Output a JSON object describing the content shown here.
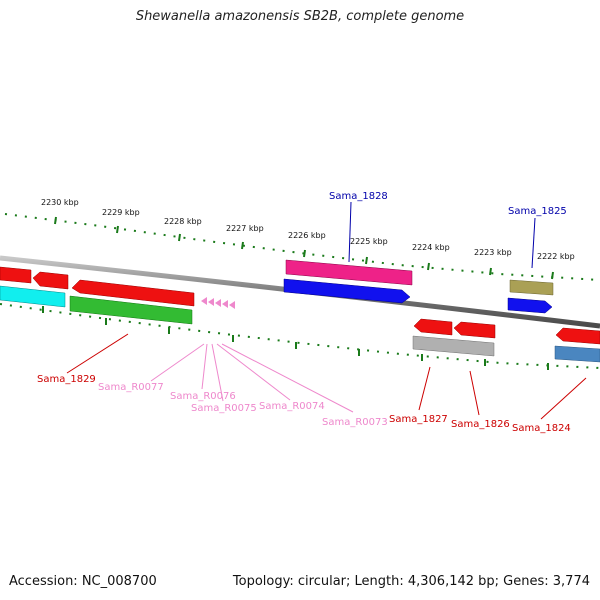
{
  "title": "Shewanella amazonensis SB2B, complete genome",
  "footer": {
    "accession": "Accession: NC_008700",
    "summary": "Topology: circular; Length: 4,306,142 bp; Genes: 3,774"
  },
  "scale_labels": [
    "2230 kbp",
    "2229 kbp",
    "2228 kbp",
    "2227 kbp",
    "2226 kbp",
    "2225 kbp",
    "2224 kbp",
    "2223 kbp",
    "2222 kbp"
  ],
  "gene_labels": {
    "top": [
      "Sama_1828",
      "Sama_1825"
    ],
    "bottom_red": [
      "Sama_1829",
      "Sama_1827",
      "Sama_1826",
      "Sama_1824"
    ],
    "bottom_pink": [
      "Sama_R0077",
      "Sama_R0076",
      "Sama_R0075",
      "Sama_R0074",
      "Sama_R0073"
    ]
  },
  "colors": {
    "tick": "#1a7a1a",
    "backbone": "#888888",
    "red": "#ee1111",
    "cyan": "#11eeee",
    "green": "#33bb33",
    "magenta": "#ee2288",
    "blue": "#1111ee",
    "olive": "#aaa055",
    "gray": "#b0b0b0",
    "steel": "#4a86c0",
    "pink": "#ee88cc",
    "label_blue": "#0000aa",
    "label_red": "#cc0000",
    "label_pink": "#ee88cc"
  }
}
